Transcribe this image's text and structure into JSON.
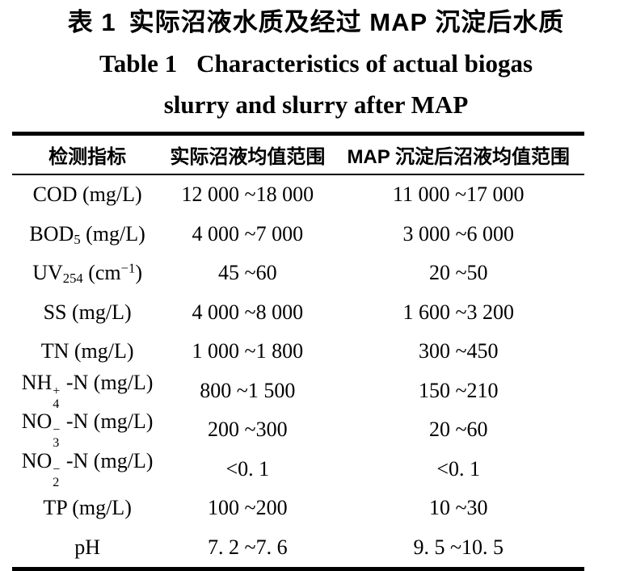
{
  "page": {
    "background": "#ffffff",
    "text_color": "#000000"
  },
  "titles": {
    "zh_label": "表 1",
    "zh_text": "实际沼液水质及经过 MAP 沉淀后水质",
    "en_label": "Table 1",
    "en_text": "Characteristics of actual biogas",
    "en_line2": "slurry and slurry after MAP"
  },
  "table": {
    "columns": [
      "检测指标",
      "实际沼液均值范围",
      "MAP 沉淀后沼液均值范围"
    ],
    "rows": [
      {
        "indicator": [
          {
            "t": "COD (mg/L)"
          }
        ],
        "actual": "12 000 ~18 000",
        "after_map": "11 000 ~17 000"
      },
      {
        "indicator": [
          {
            "t": "BOD"
          },
          {
            "sub": "5"
          },
          {
            "t": " (mg/L)"
          }
        ],
        "actual": "4 000 ~7 000",
        "after_map": "3 000 ~6 000"
      },
      {
        "indicator": [
          {
            "t": "UV"
          },
          {
            "sub": "254"
          },
          {
            "t": " (cm"
          },
          {
            "sup": "−1"
          },
          {
            "t": ")"
          }
        ],
        "actual": "45 ~60",
        "after_map": "20 ~50"
      },
      {
        "indicator": [
          {
            "t": "SS (mg/L)"
          }
        ],
        "actual": "4 000 ~8 000",
        "after_map": "1 600 ~3 200"
      },
      {
        "indicator": [
          {
            "t": "TN (mg/L)"
          }
        ],
        "actual": "1 000 ~1 800",
        "after_map": "300 ~450"
      },
      {
        "indicator": [
          {
            "t": "NH"
          },
          {
            "sub": "4",
            "sup": "+"
          },
          {
            "t": " -N (mg/L)"
          }
        ],
        "actual": "800 ~1 500",
        "after_map": "150 ~210"
      },
      {
        "indicator": [
          {
            "t": "NO"
          },
          {
            "sub": "3",
            "sup": "−"
          },
          {
            "t": " -N (mg/L)"
          }
        ],
        "actual": "200 ~300",
        "after_map": "20 ~60"
      },
      {
        "indicator": [
          {
            "t": "NO"
          },
          {
            "sub": "2",
            "sup": "−"
          },
          {
            "t": " -N (mg/L)"
          }
        ],
        "actual": "<0. 1",
        "after_map": "<0. 1"
      },
      {
        "indicator": [
          {
            "t": "TP (mg/L)"
          }
        ],
        "actual": "100 ~200",
        "after_map": "10 ~30"
      },
      {
        "indicator": [
          {
            "t": "pH"
          }
        ],
        "actual": "7. 2 ~7. 6",
        "after_map": "9. 5 ~10. 5"
      }
    ]
  }
}
